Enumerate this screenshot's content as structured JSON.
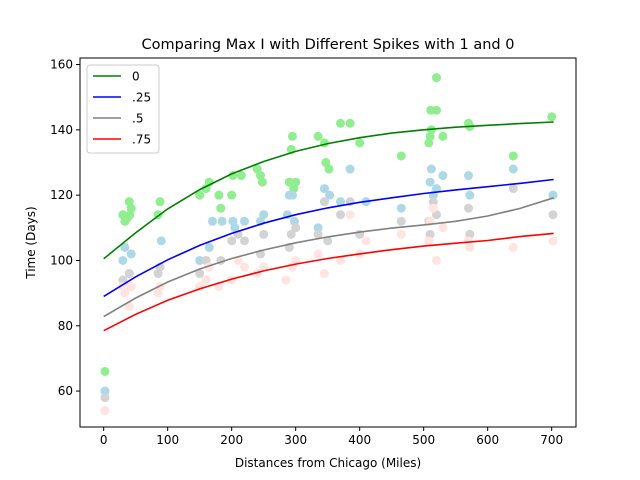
{
  "chart_data": {
    "type": "line",
    "title": "Comparing Max I with Different Spikes with 1 and 0",
    "xlabel": "Distances from Chicago (Miles)",
    "ylabel": "Time (Days)",
    "xlim": [
      -37,
      738
    ],
    "ylim": [
      49,
      162
    ],
    "x_ticks": [
      0,
      100,
      200,
      300,
      400,
      500,
      600,
      700
    ],
    "y_ticks": [
      60,
      80,
      100,
      120,
      140,
      160
    ],
    "grid": false,
    "legend_position": "top-left",
    "series": [
      {
        "name": "0",
        "line_color": "#008000",
        "point_color": "#90ee90",
        "fit": [
          [
            0,
            100.5
          ],
          [
            50,
            108.5
          ],
          [
            100,
            115.8
          ],
          [
            150,
            121.7
          ],
          [
            200,
            126.5
          ],
          [
            250,
            130.3
          ],
          [
            300,
            133.4
          ],
          [
            350,
            135.8
          ],
          [
            400,
            137.6
          ],
          [
            450,
            139.0
          ],
          [
            500,
            140.0
          ],
          [
            550,
            140.8
          ],
          [
            600,
            141.4
          ],
          [
            650,
            141.9
          ],
          [
            703,
            142.4
          ]
        ],
        "points": [
          [
            2,
            66
          ],
          [
            30,
            114
          ],
          [
            33,
            112
          ],
          [
            37,
            113
          ],
          [
            40,
            118
          ],
          [
            41,
            114
          ],
          [
            43,
            116
          ],
          [
            85,
            114
          ],
          [
            88,
            118
          ],
          [
            150,
            120
          ],
          [
            160,
            122
          ],
          [
            165,
            124
          ],
          [
            180,
            120
          ],
          [
            183,
            116
          ],
          [
            200,
            120
          ],
          [
            202,
            126
          ],
          [
            215,
            126
          ],
          [
            240,
            128
          ],
          [
            245,
            126
          ],
          [
            248,
            124
          ],
          [
            290,
            124
          ],
          [
            293,
            134
          ],
          [
            295,
            138
          ],
          [
            297,
            122
          ],
          [
            300,
            124
          ],
          [
            335,
            138
          ],
          [
            345,
            136
          ],
          [
            347,
            130
          ],
          [
            352,
            128
          ],
          [
            370,
            142
          ],
          [
            385,
            142
          ],
          [
            400,
            136
          ],
          [
            465,
            132
          ],
          [
            508,
            136
          ],
          [
            510,
            138
          ],
          [
            511,
            146
          ],
          [
            512,
            140
          ],
          [
            520,
            156
          ],
          [
            520,
            146
          ],
          [
            530,
            138
          ],
          [
            570,
            142
          ],
          [
            572,
            141
          ],
          [
            640,
            132
          ],
          [
            700,
            144
          ]
        ]
      },
      {
        "name": ".25",
        "line_color": "#0000ff",
        "point_color": "#add8e6",
        "fit": [
          [
            0,
            89.0
          ],
          [
            50,
            95.0
          ],
          [
            100,
            100.2
          ],
          [
            150,
            104.6
          ],
          [
            200,
            108.3
          ],
          [
            250,
            111.4
          ],
          [
            300,
            114.0
          ],
          [
            350,
            116.1
          ],
          [
            400,
            117.8
          ],
          [
            450,
            119.2
          ],
          [
            500,
            120.5
          ],
          [
            550,
            121.6
          ],
          [
            600,
            122.6
          ],
          [
            650,
            123.6
          ],
          [
            703,
            124.8
          ]
        ],
        "points": [
          [
            2,
            60
          ],
          [
            30,
            100
          ],
          [
            33,
            104
          ],
          [
            40,
            96
          ],
          [
            43,
            102
          ],
          [
            90,
            106
          ],
          [
            150,
            100
          ],
          [
            165,
            104
          ],
          [
            170,
            112
          ],
          [
            185,
            112
          ],
          [
            202,
            112
          ],
          [
            205,
            110
          ],
          [
            220,
            112
          ],
          [
            245,
            112
          ],
          [
            250,
            114
          ],
          [
            287,
            114
          ],
          [
            290,
            120
          ],
          [
            295,
            120
          ],
          [
            298,
            112
          ],
          [
            335,
            110
          ],
          [
            345,
            122
          ],
          [
            353,
            120
          ],
          [
            370,
            118
          ],
          [
            385,
            128
          ],
          [
            410,
            118
          ],
          [
            465,
            116
          ],
          [
            510,
            124
          ],
          [
            512,
            128
          ],
          [
            515,
            120
          ],
          [
            520,
            122
          ],
          [
            530,
            126
          ],
          [
            570,
            126
          ],
          [
            572,
            120
          ],
          [
            640,
            128
          ],
          [
            702,
            120
          ]
        ]
      },
      {
        "name": ".5",
        "line_color": "#808080",
        "point_color": "#d3d3d3",
        "fit": [
          [
            0,
            82.8
          ],
          [
            50,
            88.5
          ],
          [
            100,
            93.4
          ],
          [
            150,
            97.4
          ],
          [
            200,
            100.6
          ],
          [
            250,
            103.2
          ],
          [
            300,
            105.4
          ],
          [
            350,
            107.2
          ],
          [
            400,
            108.7
          ],
          [
            450,
            109.9
          ],
          [
            500,
            110.9
          ],
          [
            550,
            112.0
          ],
          [
            600,
            113.6
          ],
          [
            650,
            115.9
          ],
          [
            703,
            119.2
          ]
        ],
        "points": [
          [
            2,
            58
          ],
          [
            30,
            94
          ],
          [
            33,
            92
          ],
          [
            40,
            96
          ],
          [
            85,
            96
          ],
          [
            88,
            98
          ],
          [
            150,
            96
          ],
          [
            160,
            100
          ],
          [
            165,
            98
          ],
          [
            183,
            100
          ],
          [
            200,
            106
          ],
          [
            210,
            108
          ],
          [
            220,
            106
          ],
          [
            245,
            102
          ],
          [
            250,
            108
          ],
          [
            290,
            104
          ],
          [
            293,
            108
          ],
          [
            300,
            110
          ],
          [
            335,
            108
          ],
          [
            345,
            118
          ],
          [
            350,
            106
          ],
          [
            370,
            114
          ],
          [
            385,
            118
          ],
          [
            400,
            108
          ],
          [
            465,
            112
          ],
          [
            508,
            112
          ],
          [
            510,
            108
          ],
          [
            515,
            118
          ],
          [
            520,
            114
          ],
          [
            570,
            116
          ],
          [
            572,
            108
          ],
          [
            640,
            122
          ],
          [
            702,
            114
          ]
        ]
      },
      {
        "name": ".75",
        "line_color": "#ff0000",
        "point_color": "#ffe4e1",
        "fit": [
          [
            0,
            78.5
          ],
          [
            50,
            83.5
          ],
          [
            100,
            87.8
          ],
          [
            150,
            91.3
          ],
          [
            200,
            94.3
          ],
          [
            250,
            96.8
          ],
          [
            300,
            98.9
          ],
          [
            350,
            100.6
          ],
          [
            400,
            102.0
          ],
          [
            450,
            103.3
          ],
          [
            500,
            104.4
          ],
          [
            550,
            105.3
          ],
          [
            600,
            106.1
          ],
          [
            650,
            107.3
          ],
          [
            703,
            108.3
          ]
        ],
        "points": [
          [
            2,
            54
          ],
          [
            30,
            92
          ],
          [
            33,
            90
          ],
          [
            40,
            86
          ],
          [
            43,
            92
          ],
          [
            85,
            90
          ],
          [
            88,
            92
          ],
          [
            150,
            92
          ],
          [
            160,
            94
          ],
          [
            165,
            98
          ],
          [
            180,
            92
          ],
          [
            200,
            94
          ],
          [
            210,
            100
          ],
          [
            220,
            98
          ],
          [
            240,
            96
          ],
          [
            250,
            98
          ],
          [
            285,
            94
          ],
          [
            295,
            98
          ],
          [
            300,
            100
          ],
          [
            335,
            102
          ],
          [
            345,
            96
          ],
          [
            370,
            100
          ],
          [
            385,
            114
          ],
          [
            400,
            102
          ],
          [
            410,
            106
          ],
          [
            465,
            108
          ],
          [
            508,
            106
          ],
          [
            510,
            112
          ],
          [
            515,
            116
          ],
          [
            520,
            100
          ],
          [
            530,
            110
          ],
          [
            570,
            106
          ],
          [
            572,
            104
          ],
          [
            640,
            104
          ],
          [
            702,
            106
          ]
        ]
      }
    ]
  }
}
